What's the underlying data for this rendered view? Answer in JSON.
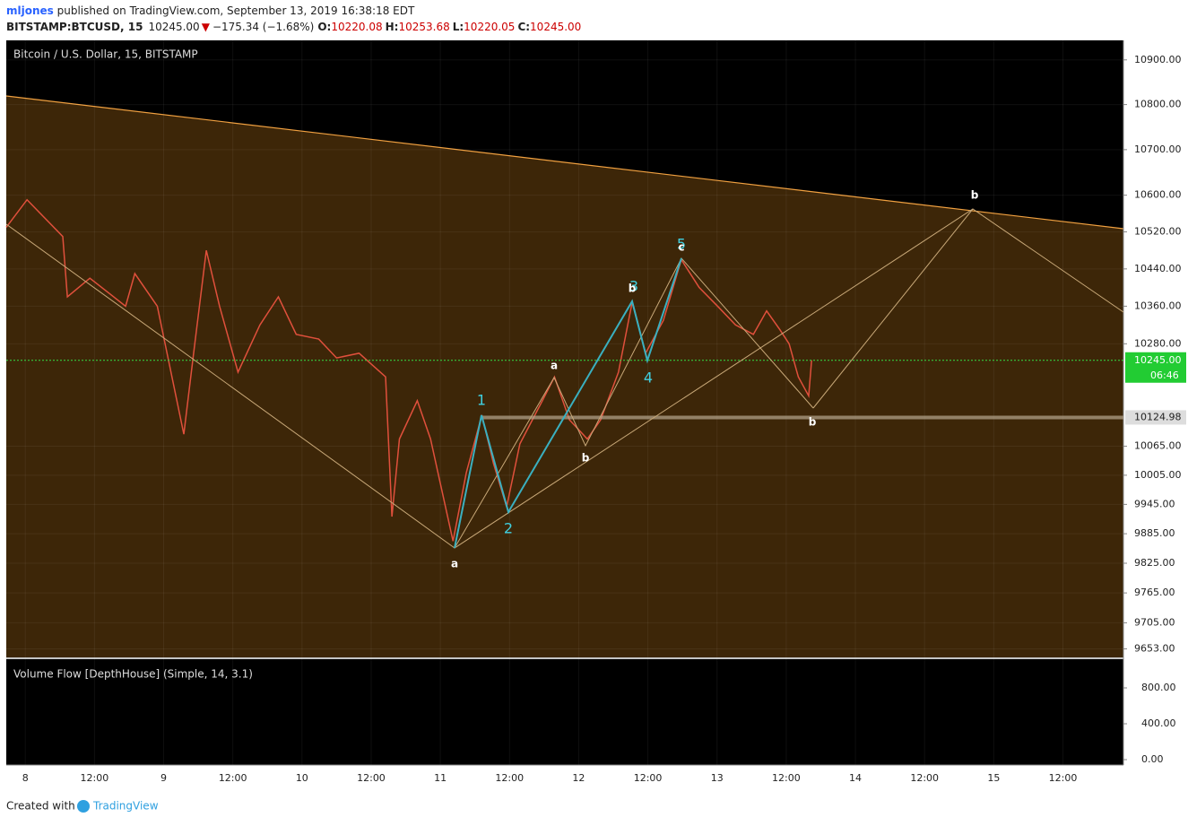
{
  "header": {
    "author": "mljones",
    "published": " published on TradingView.com, September 13, 2019 16:38:18 EDT",
    "symbol": "BITSTAMP:BTCUSD, 15",
    "last": "10245.00",
    "arrow": "▼",
    "change": "−175.34 (−1.68%)",
    "o_label": "O:",
    "o": "10220.08",
    "h_label": "H:",
    "h": "10253.68",
    "l_label": "L:",
    "l": "10220.05",
    "c_label": "C:",
    "c": "10245.00"
  },
  "footer": {
    "created": "Created with",
    "brand": "TradingView"
  },
  "chart_data": [
    {
      "type": "line",
      "title": "Bitcoin / U.S. Dollar, 15, BITSTAMP",
      "log_scale": true,
      "x": [
        -3.3,
        0.3,
        6.5,
        7.3,
        11.2,
        17.4,
        19.0,
        22.9,
        27.5,
        29.1,
        31.4,
        33.7,
        36.9,
        40.7,
        43.9,
        47.0,
        50.9,
        54.0,
        57.9,
        62.5,
        63.6,
        64.9,
        68.0,
        70.3,
        74.2,
        76.5,
        79.2,
        81.2,
        83.5,
        85.8,
        89.7,
        91.8,
        94.4,
        97.5,
        99.8,
        102.9,
        105.3,
        107.6,
        110.7,
        113.8,
        116.9,
        120.1,
        123.2,
        126.3,
        128.6,
        130.9,
        132.5,
        134.1,
        135.9,
        136.4
      ],
      "series": [
        {
          "name": "BTCUSD",
          "color": "#e0503c",
          "values": [
            10530,
            10590,
            10510,
            10380,
            10420,
            10360,
            10430,
            10360,
            10090,
            10250,
            10480,
            10360,
            10220,
            10320,
            10380,
            10300,
            10290,
            10250,
            10260,
            10210,
            9920,
            10080,
            10160,
            10080,
            9870,
            10010,
            10130,
            10030,
            9940,
            10070,
            10160,
            10210,
            10120,
            10080,
            10120,
            10220,
            10370,
            10260,
            10330,
            10460,
            10400,
            10360,
            10320,
            10300,
            10350,
            10310,
            10280,
            10210,
            10170,
            10245
          ]
        }
      ],
      "xlim": [
        -3.3,
        190.5
      ],
      "ylim": [
        9636,
        10944
      ],
      "xticks": [
        {
          "value": 0,
          "label": "8"
        },
        {
          "value": 12,
          "label": "12:00"
        },
        {
          "value": 24,
          "label": "9"
        },
        {
          "value": 36,
          "label": "12:00"
        },
        {
          "value": 48,
          "label": "10"
        },
        {
          "value": 60,
          "label": "12:00"
        },
        {
          "value": 72,
          "label": "11"
        },
        {
          "value": 84,
          "label": "12:00"
        },
        {
          "value": 96,
          "label": "12"
        },
        {
          "value": 108,
          "label": "12:00"
        },
        {
          "value": 120,
          "label": "13"
        },
        {
          "value": 132,
          "label": "12:00"
        },
        {
          "value": 144,
          "label": "14"
        },
        {
          "value": 156,
          "label": "12:00"
        },
        {
          "value": 168,
          "label": "15"
        },
        {
          "value": 180,
          "label": "12:00"
        }
      ],
      "yticks": [
        {
          "value": 10900,
          "label": "10900.00"
        },
        {
          "value": 10800,
          "label": "10800.00"
        },
        {
          "value": 10700,
          "label": "10700.00"
        },
        {
          "value": 10600,
          "label": "10600.00"
        },
        {
          "value": 10520,
          "label": "10520.00"
        },
        {
          "value": 10440,
          "label": "10440.00"
        },
        {
          "value": 10360,
          "label": "10360.00"
        },
        {
          "value": 10280,
          "label": "10280.00"
        },
        {
          "value": 10065,
          "label": "10065.00"
        },
        {
          "value": 10005,
          "label": "10005.00"
        },
        {
          "value": 9945,
          "label": "9945.00"
        },
        {
          "value": 9885,
          "label": "9885.00"
        },
        {
          "value": 9825,
          "label": "9825.00"
        },
        {
          "value": 9765,
          "label": "9765.00"
        },
        {
          "value": 9705,
          "label": "9705.00"
        },
        {
          "value": 9653,
          "label": "9653.00"
        }
      ],
      "price_line": {
        "value": 10245,
        "label": "10245.00",
        "countdown": "06:46"
      },
      "level_line": {
        "value": 10124.98,
        "label": "10124.98"
      },
      "wave_labels": [
        "1",
        "2",
        "3",
        "4",
        "5",
        "a",
        "b",
        "a",
        "b",
        "c",
        "b",
        "b"
      ]
    },
    {
      "type": "volume",
      "title": "Volume Flow [DepthHouse] (Simple, 14, 3.1)",
      "ylim": [
        -60,
        1100
      ],
      "yticks": [
        {
          "value": 800,
          "label": "800.00"
        },
        {
          "value": 400,
          "label": "400.00"
        },
        {
          "value": 0,
          "label": "0.00"
        }
      ]
    }
  ]
}
